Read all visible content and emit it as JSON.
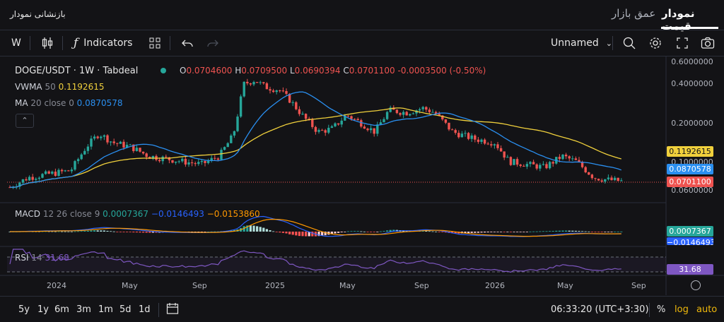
{
  "header": {
    "reset_label": "بازنشانی نمودار",
    "tabs": [
      {
        "label": "نمودار قیمت",
        "active": true
      },
      {
        "label": "عمق بازار",
        "active": false
      }
    ]
  },
  "toolbar": {
    "interval": "W",
    "indicators_label": "Indicators",
    "layout_name": "Unnamed"
  },
  "legend": {
    "symbol": "DOGE/USDT · 1W · Tabdeal",
    "ohlc": {
      "o_label": "O",
      "o": "0.0704600",
      "h_label": "H",
      "h": "0.0709500",
      "l_label": "L",
      "l": "0.0690394",
      "c_label": "C",
      "c": "0.0701100",
      "change": "-0.0003500 (-0.50%)"
    },
    "vwma": {
      "label": "VWMA",
      "param": "50",
      "value": "0.1192615"
    },
    "ma": {
      "label": "MA",
      "param": "20 close 0",
      "value": "0.0870578"
    },
    "macd": {
      "label": "MACD",
      "param": "12 26 close 9",
      "v1": "0.0007367",
      "v2": "−0.0146493",
      "v3": "−0.0153860"
    },
    "rsi": {
      "label": "RSI",
      "param": "14",
      "value": "31.68"
    }
  },
  "price_axis": [
    "0.6000000",
    "0.4000000",
    "0.2000000",
    "0.1000000",
    "0.0600000"
  ],
  "price_tags": {
    "vwma": "0.1192615",
    "ma": "0.0870578",
    "last": "0.0701100",
    "macd_hist": "0.0007367",
    "macd_line": "−0.0146493",
    "rsi": "31.68"
  },
  "time_axis": [
    "2024",
    "May",
    "Sep",
    "2025",
    "May",
    "Sep",
    "2026",
    "May",
    "Sep"
  ],
  "bottom": {
    "ranges": [
      "5y",
      "1y",
      "6m",
      "3m",
      "1m",
      "5d",
      "1d"
    ],
    "clock": "06:33:20 (UTC+3:30)",
    "percent": "%",
    "log": "log",
    "auto": "auto"
  },
  "colors": {
    "up": "#26a69a",
    "down": "#ef5350",
    "vwma": "#f0d03c",
    "ma": "#2a8ff0",
    "macd": "#2962ff",
    "signal": "#ff9800",
    "rsi": "#7e57c2",
    "accent": "#f0b90b"
  },
  "chart_data": {
    "type": "candlestick",
    "series": [
      {
        "name": "VWMA 50",
        "x": [
          "2024",
          "May",
          "Sep",
          "2025",
          "May",
          "Sep",
          "2026",
          "May",
          "Sep"
        ],
        "values": [
          0.075,
          0.085,
          0.095,
          0.15,
          0.19,
          0.2,
          0.19,
          0.145,
          0.119
        ]
      },
      {
        "name": "MA 20 close 0",
        "x": [
          "2024",
          "May",
          "Sep",
          "2025",
          "May",
          "Sep",
          "2026",
          "May",
          "Sep"
        ],
        "values": [
          0.08,
          0.12,
          0.11,
          0.3,
          0.2,
          0.21,
          0.17,
          0.1,
          0.087
        ]
      }
    ],
    "ylim": [
      0.06,
      0.6
    ],
    "scale": "log"
  }
}
